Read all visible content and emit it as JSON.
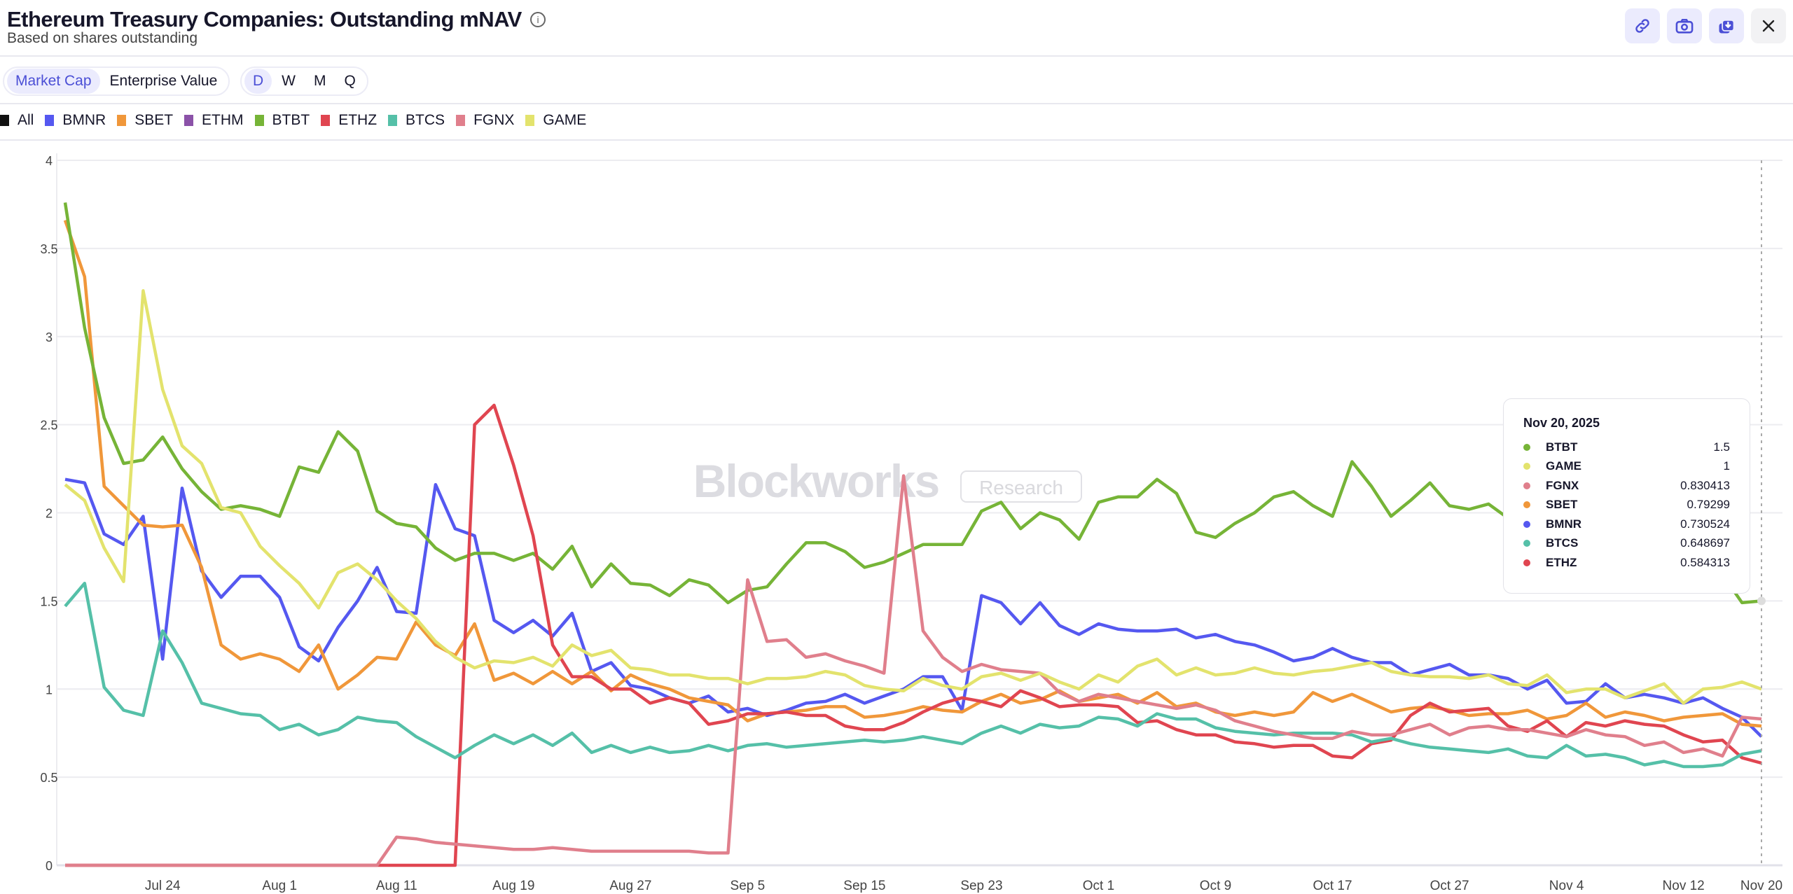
{
  "header": {
    "title": "Ethereum Treasury Companies: Outstanding mNAV",
    "info_icon": "i",
    "subtitle": "Based on shares outstanding"
  },
  "actions": [
    {
      "name": "link",
      "icon": "link-icon"
    },
    {
      "name": "screenshot",
      "icon": "camera-icon"
    },
    {
      "name": "download",
      "icon": "download-icon"
    },
    {
      "name": "close",
      "icon": "close-icon"
    }
  ],
  "basis_toggle": {
    "options": [
      "Market Cap",
      "Enterprise Value"
    ],
    "selected": "Market Cap"
  },
  "period_toggle": {
    "options": [
      "D",
      "W",
      "M",
      "Q"
    ],
    "selected": "D"
  },
  "legend_all": "All",
  "watermark": {
    "brand": "Blockworks",
    "tag": "Research"
  },
  "tooltip": {
    "date": "Nov 20, 2025",
    "rows": [
      {
        "name": "BTBT",
        "value": "1.5",
        "color": "#76b437"
      },
      {
        "name": "GAME",
        "value": "1",
        "color": "#e3e36d"
      },
      {
        "name": "FGNX",
        "value": "0.830413",
        "color": "#e07f8c"
      },
      {
        "name": "SBET",
        "value": "0.79299",
        "color": "#f0973a"
      },
      {
        "name": "BMNR",
        "value": "0.730524",
        "color": "#5558f0"
      },
      {
        "name": "BTCS",
        "value": "0.648697",
        "color": "#55c0a8"
      },
      {
        "name": "ETHZ",
        "value": "0.584313",
        "color": "#e04550"
      }
    ]
  },
  "chart_data": {
    "type": "line",
    "title": "Ethereum Treasury Companies: Outstanding mNAV",
    "xlabel": "",
    "ylabel": "mNAV",
    "x_unit": "trading day index (0 = Jul 17, 2025; 87 = Nov 20, 2025)",
    "xlim": [
      0,
      87
    ],
    "ylim": [
      0,
      4
    ],
    "yticks": [
      {
        "v": 0,
        "label": "0"
      },
      {
        "v": 0.5,
        "label": "0.5"
      },
      {
        "v": 1,
        "label": "1"
      },
      {
        "v": 1.5,
        "label": "1.5"
      },
      {
        "v": 2,
        "label": "2"
      },
      {
        "v": 2.5,
        "label": "2.5"
      },
      {
        "v": 3,
        "label": "3"
      },
      {
        "v": 3.5,
        "label": "3.5"
      },
      {
        "v": 4,
        "label": "4"
      }
    ],
    "xticks": [
      {
        "i": 5,
        "label": "Jul 24"
      },
      {
        "i": 11,
        "label": "Aug 1"
      },
      {
        "i": 17,
        "label": "Aug 11"
      },
      {
        "i": 23,
        "label": "Aug 19"
      },
      {
        "i": 29,
        "label": "Aug 27"
      },
      {
        "i": 35,
        "label": "Sep 5"
      },
      {
        "i": 41,
        "label": "Sep 15"
      },
      {
        "i": 47,
        "label": "Sep 23"
      },
      {
        "i": 53,
        "label": "Oct 1"
      },
      {
        "i": 59,
        "label": "Oct 9"
      },
      {
        "i": 65,
        "label": "Oct 17"
      },
      {
        "i": 71,
        "label": "Oct 27"
      },
      {
        "i": 77,
        "label": "Nov 4"
      },
      {
        "i": 83,
        "label": "Nov 12"
      },
      {
        "i": 87,
        "label": "Nov 20"
      }
    ],
    "grid": true,
    "legend": "top-left",
    "hover_index": 87,
    "series": [
      {
        "name": "BMNR",
        "color": "#5558f0",
        "values": [
          2.19,
          2.17,
          1.88,
          1.82,
          1.98,
          1.17,
          2.14,
          1.67,
          1.52,
          1.64,
          1.64,
          1.52,
          1.24,
          1.16,
          1.35,
          1.5,
          1.69,
          1.44,
          1.43,
          2.16,
          1.91,
          1.87,
          1.39,
          1.32,
          1.39,
          1.3,
          1.43,
          1.1,
          1.15,
          1.02,
          1.0,
          0.95,
          0.92,
          0.96,
          0.87,
          0.89,
          0.85,
          0.88,
          0.92,
          0.93,
          0.97,
          0.92,
          0.96,
          1.0,
          1.07,
          1.07,
          0.88,
          1.53,
          1.49,
          1.37,
          1.49,
          1.36,
          1.31,
          1.37,
          1.34,
          1.33,
          1.33,
          1.34,
          1.29,
          1.31,
          1.27,
          1.25,
          1.21,
          1.16,
          1.18,
          1.23,
          1.18,
          1.15,
          1.15,
          1.08,
          1.11,
          1.14,
          1.08,
          1.08,
          1.06,
          1.0,
          1.05,
          0.92,
          0.93,
          1.03,
          0.95,
          0.97,
          0.95,
          0.92,
          0.95,
          0.89,
          0.84,
          0.73
        ]
      },
      {
        "name": "SBET",
        "color": "#f0973a",
        "values": [
          3.66,
          3.34,
          2.15,
          2.04,
          1.93,
          1.92,
          1.93,
          1.69,
          1.25,
          1.17,
          1.2,
          1.17,
          1.1,
          1.25,
          1.0,
          1.08,
          1.18,
          1.17,
          1.38,
          1.25,
          1.19,
          1.37,
          1.05,
          1.09,
          1.03,
          1.1,
          1.03,
          1.1,
          0.99,
          1.08,
          1.03,
          1.0,
          0.95,
          0.93,
          0.91,
          0.82,
          0.86,
          0.87,
          0.88,
          0.9,
          0.9,
          0.84,
          0.85,
          0.87,
          0.9,
          0.88,
          0.87,
          0.93,
          0.97,
          0.92,
          0.94,
          0.99,
          0.93,
          0.95,
          0.97,
          0.92,
          0.98,
          0.9,
          0.92,
          0.87,
          0.85,
          0.87,
          0.85,
          0.87,
          0.98,
          0.93,
          0.97,
          0.92,
          0.87,
          0.89,
          0.9,
          0.88,
          0.85,
          0.86,
          0.86,
          0.88,
          0.83,
          0.85,
          0.92,
          0.84,
          0.87,
          0.85,
          0.82,
          0.84,
          0.85,
          0.86,
          0.8,
          0.79
        ]
      },
      {
        "name": "ETHM",
        "color": "#8b52a8",
        "values": []
      },
      {
        "name": "BTBT",
        "color": "#76b437",
        "values": [
          3.76,
          3.05,
          2.54,
          2.28,
          2.3,
          2.43,
          2.25,
          2.12,
          2.02,
          2.04,
          2.02,
          1.98,
          2.26,
          2.23,
          2.46,
          2.35,
          2.01,
          1.94,
          1.92,
          1.8,
          1.73,
          1.77,
          1.77,
          1.73,
          1.77,
          1.68,
          1.81,
          1.58,
          1.71,
          1.6,
          1.59,
          1.53,
          1.62,
          1.59,
          1.49,
          1.56,
          1.58,
          1.71,
          1.83,
          1.83,
          1.78,
          1.69,
          1.72,
          1.77,
          1.82,
          1.82,
          1.82,
          2.01,
          2.06,
          1.91,
          2.0,
          1.96,
          1.85,
          2.06,
          2.09,
          2.09,
          2.19,
          2.11,
          1.89,
          1.86,
          1.94,
          2.0,
          2.09,
          2.12,
          2.04,
          1.98,
          2.29,
          2.15,
          1.98,
          2.07,
          2.17,
          2.04,
          2.02,
          2.05,
          1.97,
          2.05,
          1.95,
          2.0,
          2.05,
          1.95,
          2.0,
          1.95,
          1.9,
          1.85,
          1.75,
          1.65,
          1.49,
          1.5
        ]
      },
      {
        "name": "ETHZ",
        "color": "#e04550",
        "values": [
          0,
          0,
          0,
          0,
          0,
          0,
          0,
          0,
          0,
          0,
          0,
          0,
          0,
          0,
          0,
          0,
          0,
          0,
          0,
          0,
          0,
          2.5,
          2.61,
          2.27,
          1.87,
          1.25,
          1.07,
          1.07,
          1.0,
          1.0,
          0.92,
          0.95,
          0.92,
          0.8,
          0.82,
          0.86,
          0.86,
          0.87,
          0.85,
          0.85,
          0.79,
          0.77,
          0.77,
          0.81,
          0.87,
          0.92,
          0.95,
          0.93,
          0.9,
          0.99,
          0.95,
          0.9,
          0.91,
          0.91,
          0.9,
          0.81,
          0.82,
          0.77,
          0.74,
          0.74,
          0.7,
          0.69,
          0.67,
          0.68,
          0.68,
          0.62,
          0.61,
          0.69,
          0.71,
          0.85,
          0.92,
          0.87,
          0.88,
          0.89,
          0.79,
          0.76,
          0.82,
          0.73,
          0.81,
          0.79,
          0.82,
          0.8,
          0.79,
          0.74,
          0.7,
          0.71,
          0.61,
          0.58
        ]
      },
      {
        "name": "BTCS",
        "color": "#55c0a8",
        "values": [
          1.47,
          1.6,
          1.01,
          0.88,
          0.85,
          1.33,
          1.15,
          0.92,
          0.89,
          0.86,
          0.85,
          0.77,
          0.8,
          0.74,
          0.77,
          0.84,
          0.82,
          0.81,
          0.73,
          0.67,
          0.61,
          0.68,
          0.74,
          0.69,
          0.74,
          0.68,
          0.75,
          0.64,
          0.68,
          0.64,
          0.67,
          0.64,
          0.65,
          0.68,
          0.65,
          0.68,
          0.69,
          0.67,
          0.68,
          0.69,
          0.7,
          0.71,
          0.7,
          0.71,
          0.73,
          0.71,
          0.69,
          0.75,
          0.79,
          0.75,
          0.8,
          0.78,
          0.79,
          0.84,
          0.83,
          0.79,
          0.86,
          0.83,
          0.83,
          0.78,
          0.76,
          0.75,
          0.74,
          0.75,
          0.75,
          0.75,
          0.74,
          0.7,
          0.72,
          0.69,
          0.67,
          0.66,
          0.65,
          0.64,
          0.66,
          0.62,
          0.61,
          0.68,
          0.62,
          0.63,
          0.61,
          0.57,
          0.59,
          0.56,
          0.56,
          0.57,
          0.63,
          0.65
        ]
      },
      {
        "name": "FGNX",
        "color": "#e07f8c",
        "values": [
          0,
          0,
          0,
          0,
          0,
          0,
          0,
          0,
          0,
          0,
          0,
          0,
          0,
          0,
          0,
          0,
          0,
          0.16,
          0.15,
          0.13,
          0.12,
          0.11,
          0.1,
          0.09,
          0.09,
          0.1,
          0.09,
          0.08,
          0.08,
          0.08,
          0.08,
          0.08,
          0.08,
          0.07,
          0.07,
          1.62,
          1.27,
          1.28,
          1.18,
          1.2,
          1.16,
          1.13,
          1.09,
          2.21,
          1.33,
          1.18,
          1.1,
          1.14,
          1.11,
          1.1,
          1.09,
          0.98,
          0.93,
          0.97,
          0.95,
          0.93,
          0.91,
          0.89,
          0.91,
          0.88,
          0.82,
          0.79,
          0.76,
          0.74,
          0.72,
          0.72,
          0.76,
          0.74,
          0.74,
          0.77,
          0.8,
          0.74,
          0.78,
          0.79,
          0.77,
          0.77,
          0.75,
          0.73,
          0.77,
          0.74,
          0.73,
          0.68,
          0.7,
          0.64,
          0.66,
          0.62,
          0.84,
          0.83
        ]
      },
      {
        "name": "GAME",
        "color": "#e3e36d",
        "values": [
          2.16,
          2.07,
          1.8,
          1.61,
          3.26,
          2.7,
          2.38,
          2.28,
          2.03,
          2.0,
          1.81,
          1.7,
          1.6,
          1.46,
          1.66,
          1.71,
          1.62,
          1.5,
          1.4,
          1.27,
          1.18,
          1.12,
          1.16,
          1.15,
          1.18,
          1.13,
          1.25,
          1.19,
          1.22,
          1.12,
          1.11,
          1.08,
          1.08,
          1.06,
          1.06,
          1.03,
          1.06,
          1.06,
          1.07,
          1.1,
          1.08,
          1.02,
          1.0,
          0.99,
          1.06,
          1.02,
          1.0,
          1.07,
          1.09,
          1.05,
          1.09,
          1.04,
          1.0,
          1.08,
          1.04,
          1.13,
          1.17,
          1.08,
          1.12,
          1.08,
          1.09,
          1.12,
          1.09,
          1.08,
          1.1,
          1.11,
          1.13,
          1.15,
          1.1,
          1.08,
          1.07,
          1.07,
          1.06,
          1.08,
          1.03,
          1.02,
          1.08,
          0.98,
          1.0,
          1.0,
          0.95,
          0.99,
          1.03,
          0.92,
          1.0,
          1.01,
          1.04,
          1.0
        ]
      }
    ]
  }
}
